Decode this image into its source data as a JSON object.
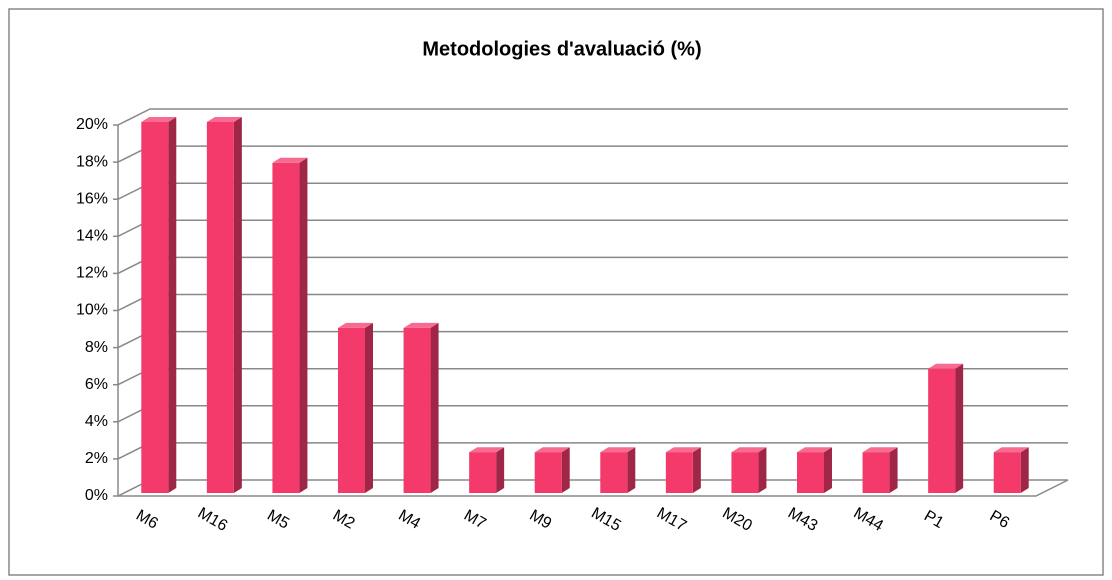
{
  "chart_data": {
    "type": "bar3d",
    "title": "Metodologies d'avaluació (%)",
    "categories": [
      "M6",
      "M16",
      "M5",
      "M2",
      "M4",
      "M7",
      "M9",
      "M15",
      "M17",
      "M20",
      "M43",
      "M44",
      "P1",
      "P6"
    ],
    "values": [
      20,
      20,
      17.8,
      8.9,
      8.9,
      2.2,
      2.2,
      2.2,
      2.2,
      2.2,
      2.2,
      2.2,
      6.7,
      2.2
    ],
    "color": "#f43a6b",
    "ylim": [
      0,
      20
    ],
    "yticks": [
      {
        "value": 0,
        "label": "0%"
      },
      {
        "value": 2,
        "label": "2%"
      },
      {
        "value": 4,
        "label": "4%"
      },
      {
        "value": 6,
        "label": "6%"
      },
      {
        "value": 8,
        "label": "8%"
      },
      {
        "value": 10,
        "label": "10%"
      },
      {
        "value": 12,
        "label": "12%"
      },
      {
        "value": 14,
        "label": "14%"
      },
      {
        "value": 16,
        "label": "16%"
      },
      {
        "value": 18,
        "label": "18%"
      },
      {
        "value": 20,
        "label": "20%"
      }
    ],
    "grid": true
  }
}
